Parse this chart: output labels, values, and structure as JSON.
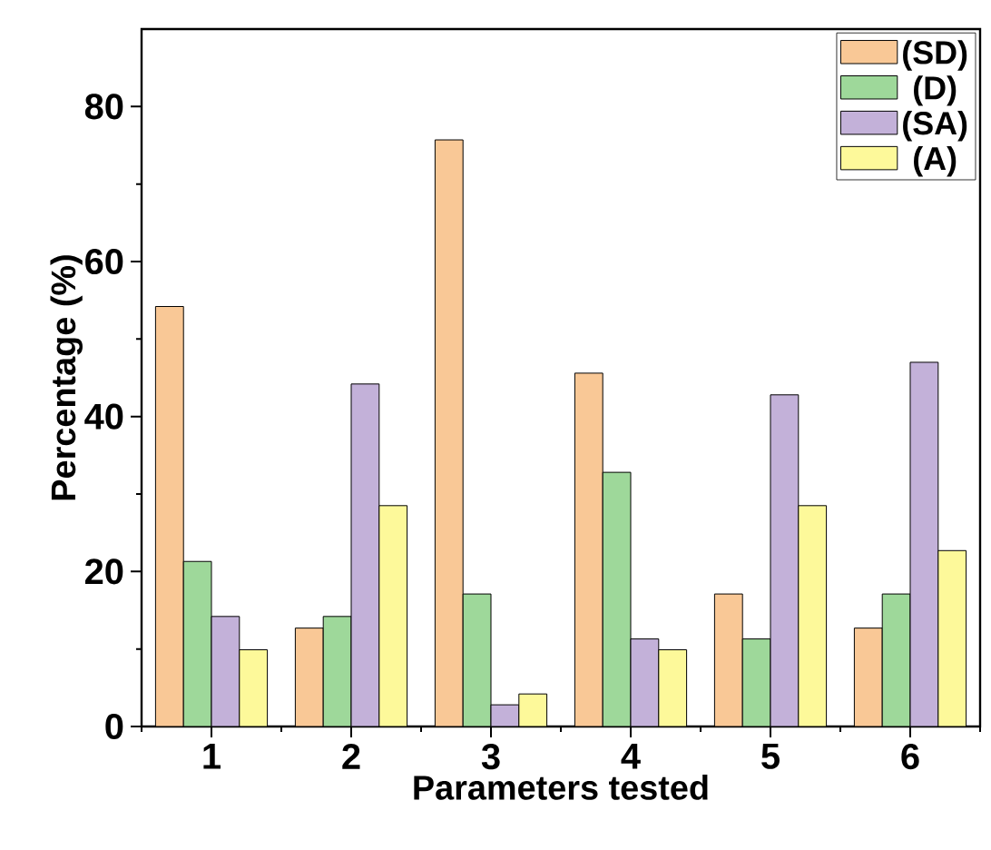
{
  "chart_data": {
    "type": "bar",
    "xlabel": "Parameters tested",
    "ylabel": "Percentage (%)",
    "categories": [
      "1",
      "2",
      "3",
      "4",
      "5",
      "6"
    ],
    "ylim": [
      0,
      90
    ],
    "yticks": [
      0,
      20,
      40,
      60,
      80
    ],
    "legend": "top right",
    "grid": false,
    "series": [
      {
        "name": "(SD)",
        "color": "#f9c896",
        "values": [
          54.2,
          12.7,
          75.7,
          45.6,
          17.1,
          12.7
        ]
      },
      {
        "name": "(D)",
        "color": "#9ed89a",
        "values": [
          21.3,
          14.2,
          17.1,
          32.8,
          11.3,
          17.1
        ]
      },
      {
        "name": "(SA)",
        "color": "#c3b1d9",
        "values": [
          14.2,
          44.2,
          2.8,
          11.3,
          42.8,
          47.0
        ]
      },
      {
        "name": "(A)",
        "color": "#fdf99a",
        "values": [
          9.9,
          28.5,
          4.2,
          9.9,
          28.5,
          22.7
        ]
      }
    ]
  }
}
